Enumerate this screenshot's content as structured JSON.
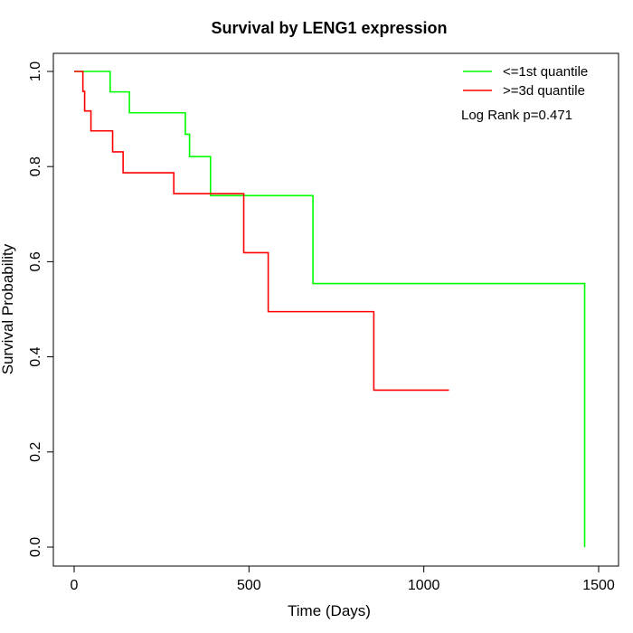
{
  "chart_data": {
    "type": "line",
    "title": "Survival by LENG1 expression",
    "xlabel": "Time (Days)",
    "ylabel": "Survival Probability",
    "xlim": [
      0,
      1500
    ],
    "ylim": [
      0,
      1
    ],
    "x_ticks": [
      0,
      500,
      1000,
      1500
    ],
    "y_ticks": [
      0.0,
      0.2,
      0.4,
      0.6,
      0.8,
      1.0
    ],
    "x_tick_labels": [
      "0",
      "500",
      "1000",
      "1500"
    ],
    "y_tick_labels": [
      "0.0",
      "0.2",
      "0.4",
      "0.6",
      "0.8",
      "1.0"
    ],
    "grid": false,
    "legend_position": "top-right",
    "annotation": "Log Rank p=0.471",
    "series": [
      {
        "name": "<=1st quantile",
        "color": "#00ff00",
        "step": true,
        "x": [
          0,
          103,
          158,
          318,
          330,
          390,
          683,
          1460,
          1460
        ],
        "y": [
          1.0,
          0.957,
          0.913,
          0.868,
          0.821,
          0.739,
          0.554,
          0.554,
          0.0
        ]
      },
      {
        "name": ">=3d quantile",
        "color": "#ff0000",
        "step": true,
        "x": [
          0,
          25,
          30,
          48,
          110,
          140,
          285,
          485,
          555,
          857,
          1072
        ],
        "y": [
          1.0,
          0.958,
          0.917,
          0.875,
          0.831,
          0.787,
          0.743,
          0.619,
          0.495,
          0.33,
          0.33
        ]
      }
    ]
  }
}
